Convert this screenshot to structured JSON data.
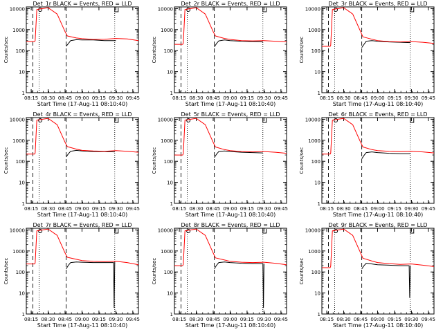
{
  "chart_data": [
    {
      "type": "line",
      "title": "Det_1r BLACK = Events, RED = LLD",
      "xlabel": "Start Time (17-Aug-11 08:10:40)",
      "ylabel": "Counts/sec",
      "x_ticks": [
        "08:15",
        "08:30",
        "08:45",
        "09:00",
        "09:15",
        "09:30",
        "09:45"
      ],
      "y_ticks": [
        "1",
        "10",
        "100",
        "1000",
        "10000"
      ],
      "y_scale": "log",
      "ylim": [
        1,
        12000
      ],
      "xlim": [
        "08:10:40",
        "09:50:00"
      ],
      "colors": {
        "events": "#000000",
        "lld": "#ff0000"
      },
      "series": [
        {
          "name": "Events",
          "x": [
            "08:34",
            "08:46",
            "08:48",
            "08:50",
            "08:55",
            "09:00",
            "09:10",
            "09:20",
            "09:29",
            "09:30"
          ],
          "values": [
            0,
            160,
            220,
            300,
            330,
            320,
            320,
            300,
            300,
            300
          ]
        },
        {
          "name": "LLD",
          "x": [
            "08:10:40",
            "08:18",
            "08:18:30",
            "08:20",
            "08:30",
            "08:38",
            "08:45",
            "08:47",
            "08:55",
            "09:00",
            "09:10",
            "09:20",
            "09:30",
            "09:40",
            "09:50"
          ],
          "values": [
            270,
            270,
            300,
            9000,
            11000,
            5500,
            800,
            500,
            400,
            370,
            340,
            350,
            380,
            360,
            300
          ]
        }
      ]
    },
    {
      "type": "line",
      "title": "Det_2r BLACK = Events, RED = LLD",
      "xlabel": "Start Time (17-Aug-11 08:10:40)",
      "ylabel": "Counts/sec",
      "x_ticks": [
        "08:15",
        "08:30",
        "08:45",
        "09:00",
        "09:15",
        "09:30",
        "09:45"
      ],
      "y_ticks": [
        "1",
        "10",
        "100",
        "1000",
        "10000"
      ],
      "y_scale": "log",
      "ylim": [
        1,
        12000
      ],
      "xlim": [
        "08:10:40",
        "09:50:00"
      ],
      "colors": {
        "events": "#000000",
        "lld": "#ff0000"
      },
      "series": [
        {
          "name": "Events",
          "x": [
            "08:46",
            "08:48",
            "08:50",
            "08:55",
            "09:00",
            "09:10",
            "09:20",
            "09:29"
          ],
          "values": [
            150,
            220,
            290,
            320,
            300,
            280,
            270,
            260
          ]
        },
        {
          "name": "LLD",
          "x": [
            "08:10:40",
            "08:18",
            "08:18:30",
            "08:20",
            "08:30",
            "08:38",
            "08:45",
            "08:47",
            "08:55",
            "09:00",
            "09:10",
            "09:20",
            "09:30",
            "09:40",
            "09:50"
          ],
          "values": [
            200,
            200,
            230,
            9000,
            11000,
            5500,
            800,
            500,
            380,
            340,
            300,
            290,
            300,
            280,
            260
          ]
        }
      ]
    },
    {
      "type": "line",
      "title": "Det_3r BLACK = Events, RED = LLD",
      "xlabel": "Start Time (17-Aug-11 08:10:40)",
      "ylabel": "Counts/sec",
      "x_ticks": [
        "08:15",
        "08:30",
        "08:45",
        "09:00",
        "09:15",
        "09:30",
        "09:45"
      ],
      "y_ticks": [
        "1",
        "10",
        "100",
        "1000",
        "10000"
      ],
      "y_scale": "log",
      "ylim": [
        1,
        12000
      ],
      "xlim": [
        "08:10:40",
        "09:50:00"
      ],
      "colors": {
        "events": "#000000",
        "lld": "#ff0000"
      },
      "series": [
        {
          "name": "Events",
          "x": [
            "08:46",
            "08:48",
            "08:50",
            "08:55",
            "09:00",
            "09:10",
            "09:20",
            "09:29"
          ],
          "values": [
            140,
            200,
            280,
            300,
            280,
            260,
            250,
            240
          ]
        },
        {
          "name": "LLD",
          "x": [
            "08:10:40",
            "08:18",
            "08:18:30",
            "08:20",
            "08:30",
            "08:38",
            "08:45",
            "08:47",
            "08:55",
            "09:00",
            "09:10",
            "09:20",
            "09:30",
            "09:40",
            "09:50"
          ],
          "values": [
            160,
            160,
            180,
            9000,
            11000,
            5500,
            800,
            450,
            350,
            300,
            270,
            260,
            270,
            250,
            220
          ]
        }
      ]
    },
    {
      "type": "line",
      "title": "Det_4r BLACK = Events, RED = LLD",
      "xlabel": "Start Time (17-Aug-11 08:10:40)",
      "ylabel": "Counts/sec",
      "x_ticks": [
        "08:15",
        "08:30",
        "08:45",
        "09:00",
        "09:15",
        "09:30",
        "09:45"
      ],
      "y_ticks": [
        "1",
        "10",
        "100",
        "1000",
        "10000"
      ],
      "y_scale": "log",
      "ylim": [
        1,
        12000
      ],
      "xlim": [
        "08:10:40",
        "09:50:00"
      ],
      "colors": {
        "events": "#000000",
        "lld": "#ff0000"
      },
      "series": [
        {
          "name": "Events",
          "x": [
            "08:46",
            "08:48",
            "08:50",
            "08:55",
            "09:00",
            "09:10",
            "09:20",
            "09:29"
          ],
          "values": [
            160,
            230,
            300,
            330,
            310,
            290,
            290,
            280
          ]
        },
        {
          "name": "LLD",
          "x": [
            "08:10:40",
            "08:18",
            "08:18:30",
            "08:20",
            "08:30",
            "08:38",
            "08:45",
            "08:47",
            "08:55",
            "09:00",
            "09:10",
            "09:20",
            "09:30",
            "09:40",
            "09:50"
          ],
          "values": [
            220,
            220,
            250,
            9000,
            11000,
            5500,
            800,
            500,
            380,
            330,
            310,
            300,
            320,
            300,
            270
          ]
        }
      ]
    },
    {
      "type": "line",
      "title": "Det_5r BLACK = Events, RED = LLD",
      "xlabel": "Start Time (17-Aug-11 08:10:40)",
      "ylabel": "Counts/sec",
      "x_ticks": [
        "08:15",
        "08:30",
        "08:45",
        "09:00",
        "09:15",
        "09:30",
        "09:45"
      ],
      "y_ticks": [
        "1",
        "10",
        "100",
        "1000",
        "10000"
      ],
      "y_scale": "log",
      "ylim": [
        1,
        12000
      ],
      "xlim": [
        "08:10:40",
        "09:50:00"
      ],
      "colors": {
        "events": "#000000",
        "lld": "#ff0000"
      },
      "series": [
        {
          "name": "Events",
          "x": [
            "08:46",
            "08:48",
            "08:50",
            "08:55",
            "09:00",
            "09:10",
            "09:20",
            "09:29"
          ],
          "values": [
            150,
            220,
            290,
            310,
            290,
            270,
            260,
            250
          ]
        },
        {
          "name": "LLD",
          "x": [
            "08:10:40",
            "08:18",
            "08:18:30",
            "08:20",
            "08:30",
            "08:38",
            "08:45",
            "08:47",
            "08:55",
            "09:00",
            "09:10",
            "09:20",
            "09:30",
            "09:40",
            "09:50"
          ],
          "values": [
            200,
            200,
            230,
            9000,
            11000,
            5500,
            800,
            480,
            360,
            320,
            290,
            280,
            290,
            270,
            240
          ]
        }
      ]
    },
    {
      "type": "line",
      "title": "Det_6r BLACK = Events, RED = LLD",
      "xlabel": "Start Time (17-Aug-11 08:10:40)",
      "ylabel": "Counts/sec",
      "x_ticks": [
        "08:15",
        "08:30",
        "08:45",
        "09:00",
        "09:15",
        "09:30",
        "09:45"
      ],
      "y_ticks": [
        "1",
        "10",
        "100",
        "1000",
        "10000"
      ],
      "y_scale": "log",
      "ylim": [
        1,
        12000
      ],
      "xlim": [
        "08:10:40",
        "09:50:00"
      ],
      "colors": {
        "events": "#000000",
        "lld": "#ff0000"
      },
      "series": [
        {
          "name": "Events",
          "x": [
            "08:46",
            "08:48",
            "08:50",
            "08:55",
            "09:00",
            "09:10",
            "09:20",
            "09:29"
          ],
          "values": [
            130,
            190,
            260,
            280,
            260,
            240,
            230,
            230
          ]
        },
        {
          "name": "LLD",
          "x": [
            "08:10:40",
            "08:18",
            "08:18:30",
            "08:20",
            "08:30",
            "08:38",
            "08:45",
            "08:47",
            "08:55",
            "09:00",
            "09:10",
            "09:20",
            "09:30",
            "09:40",
            "09:50"
          ],
          "values": [
            220,
            220,
            250,
            9000,
            11000,
            5500,
            800,
            480,
            360,
            320,
            300,
            290,
            300,
            280,
            250
          ]
        }
      ]
    },
    {
      "type": "line",
      "title": "Det_7r BLACK = Events, RED = LLD",
      "xlabel": "Start Time (17-Aug-11 08:10:40)",
      "ylabel": "Counts/sec",
      "x_ticks": [
        "08:15",
        "08:30",
        "08:45",
        "09:00",
        "09:15",
        "09:30",
        "09:45"
      ],
      "y_ticks": [
        "1",
        "10",
        "100",
        "1000",
        "10000"
      ],
      "y_scale": "log",
      "ylim": [
        1,
        12000
      ],
      "xlim": [
        "08:10:40",
        "09:50:00"
      ],
      "colors": {
        "events": "#000000",
        "lld": "#ff0000"
      },
      "series": [
        {
          "name": "Events",
          "x": [
            "08:46",
            "08:48",
            "08:50",
            "08:55",
            "09:00",
            "09:10",
            "09:20",
            "09:28",
            "09:28:30",
            "09:29"
          ],
          "values": [
            140,
            210,
            280,
            300,
            290,
            280,
            280,
            280,
            2,
            300
          ]
        },
        {
          "name": "LLD",
          "x": [
            "08:10:40",
            "08:18",
            "08:18:30",
            "08:20",
            "08:30",
            "08:38",
            "08:45",
            "08:47",
            "08:55",
            "09:00",
            "09:10",
            "09:20",
            "09:30",
            "09:40",
            "09:50"
          ],
          "values": [
            240,
            240,
            270,
            9000,
            11000,
            5500,
            800,
            500,
            400,
            350,
            320,
            310,
            320,
            280,
            220
          ]
        }
      ]
    },
    {
      "type": "line",
      "title": "Det_8r BLACK = Events, RED = LLD",
      "xlabel": "Start Time (17-Aug-11 08:10:40)",
      "ylabel": "Counts/sec",
      "x_ticks": [
        "08:15",
        "08:30",
        "08:45",
        "09:00",
        "09:15",
        "09:30",
        "09:45"
      ],
      "y_ticks": [
        "1",
        "10",
        "100",
        "1000",
        "10000"
      ],
      "y_scale": "log",
      "ylim": [
        1,
        12000
      ],
      "xlim": [
        "08:10:40",
        "09:50:00"
      ],
      "colors": {
        "events": "#000000",
        "lld": "#ff0000"
      },
      "series": [
        {
          "name": "Events",
          "x": [
            "08:46",
            "08:48",
            "08:50",
            "08:55",
            "09:00",
            "09:10",
            "09:20",
            "09:29",
            "09:29:30",
            "09:30"
          ],
          "values": [
            140,
            210,
            280,
            300,
            280,
            260,
            250,
            250,
            2,
            250
          ]
        },
        {
          "name": "LLD",
          "x": [
            "08:10:40",
            "08:18",
            "08:18:30",
            "08:20",
            "08:30",
            "08:38",
            "08:45",
            "08:47",
            "08:55",
            "09:00",
            "09:10",
            "09:20",
            "09:30",
            "09:40",
            "09:50"
          ],
          "values": [
            200,
            200,
            230,
            9000,
            11000,
            5500,
            800,
            470,
            370,
            320,
            290,
            280,
            290,
            260,
            220
          ]
        }
      ]
    },
    {
      "type": "line",
      "title": "Det_9r BLACK = Events, RED = LLD",
      "xlabel": "Start Time (17-Aug-11 08:10:40)",
      "ylabel": "Counts/sec",
      "x_ticks": [
        "08:15",
        "08:30",
        "08:45",
        "09:00",
        "09:15",
        "09:30",
        "09:45"
      ],
      "y_ticks": [
        "1",
        "10",
        "100",
        "1000",
        "10000"
      ],
      "y_scale": "log",
      "ylim": [
        1,
        12000
      ],
      "xlim": [
        "08:10:40",
        "09:50:00"
      ],
      "colors": {
        "events": "#000000",
        "lld": "#ff0000"
      },
      "series": [
        {
          "name": "Events",
          "x": [
            "08:46",
            "08:48",
            "08:50",
            "08:55",
            "09:00",
            "09:10",
            "09:20",
            "09:28",
            "09:28:30",
            "09:29"
          ],
          "values": [
            140,
            200,
            260,
            240,
            220,
            210,
            200,
            200,
            6,
            200
          ]
        },
        {
          "name": "LLD",
          "x": [
            "08:10:40",
            "08:18",
            "08:18:30",
            "08:20",
            "08:30",
            "08:38",
            "08:45",
            "08:47",
            "08:55",
            "09:00",
            "09:10",
            "09:20",
            "09:30",
            "09:40",
            "09:50"
          ],
          "values": [
            160,
            160,
            190,
            9000,
            11000,
            5500,
            800,
            450,
            330,
            280,
            250,
            230,
            240,
            210,
            180
          ]
        }
      ]
    }
  ]
}
